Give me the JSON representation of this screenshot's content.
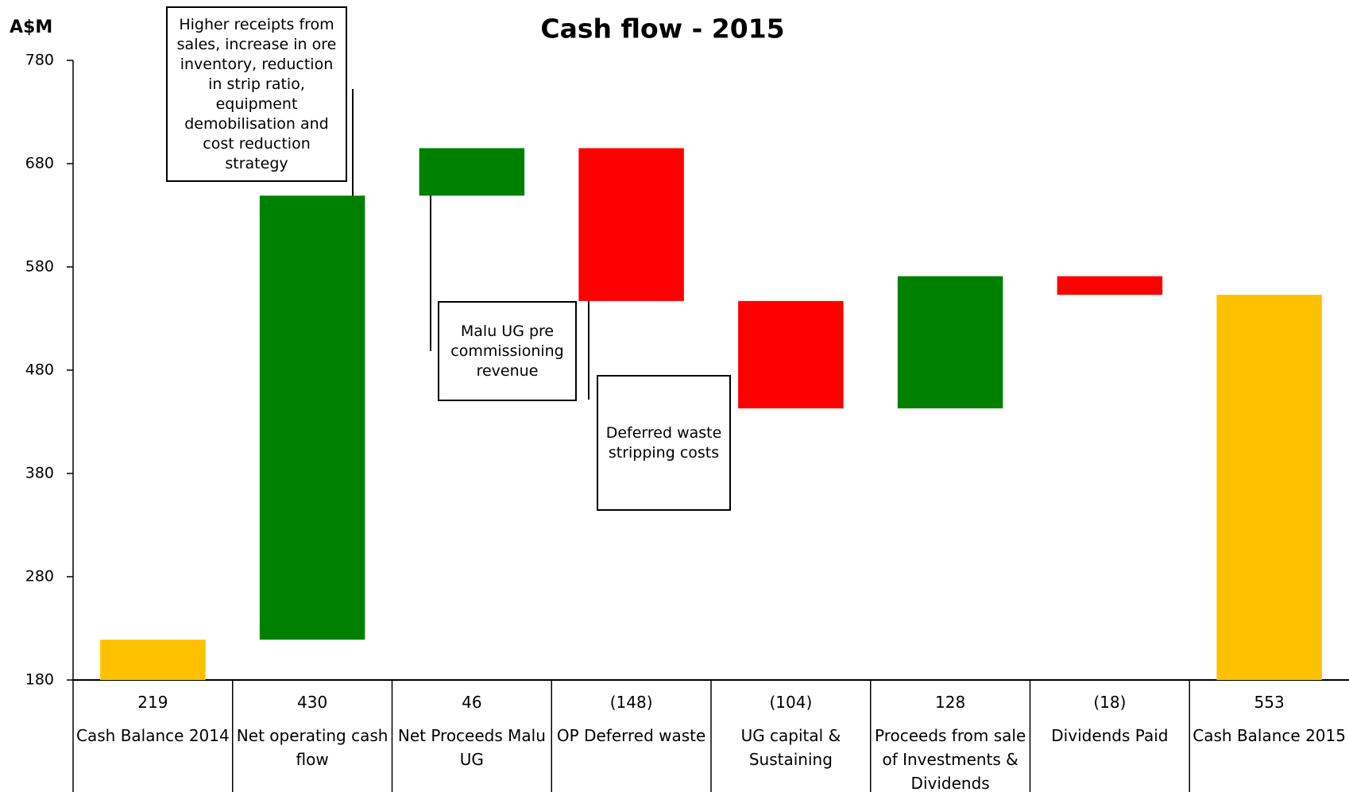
{
  "chart_data": {
    "type": "waterfall",
    "title": "Cash flow - 2015",
    "y_label": "A$M",
    "categories": [
      "Cash Balance 2014",
      "Net operating cash flow",
      "Net Proceeds Malu UG",
      "OP Deferred waste",
      "UG capital & Sustaining",
      "Proceeds from sale of Investments & Dividends",
      "Dividends Paid",
      "Cash Balance 2015"
    ],
    "values": [
      219,
      430,
      46,
      -148,
      -104,
      128,
      -18,
      553
    ],
    "value_labels": [
      "219",
      "430",
      "46",
      "(148)",
      "(104)",
      "128",
      "(18)",
      "553"
    ],
    "totals": [
      true,
      false,
      false,
      false,
      false,
      false,
      false,
      true
    ],
    "colors": [
      "#ffc000",
      "#008000",
      "#008000",
      "#ff0000",
      "#ff0000",
      "#008000",
      "#ff0000",
      "#ffc000"
    ],
    "ylim": [
      180,
      780
    ],
    "yticks": [
      180,
      280,
      380,
      480,
      580,
      680,
      780
    ],
    "grid": false,
    "annotations": [
      "Higher receipts from sales, increase in ore inventory, reduction in strip ratio, equipment demobilisation and cost reduction strategy",
      "Malu UG pre commissioning revenue",
      "Deferred waste stripping costs"
    ]
  }
}
